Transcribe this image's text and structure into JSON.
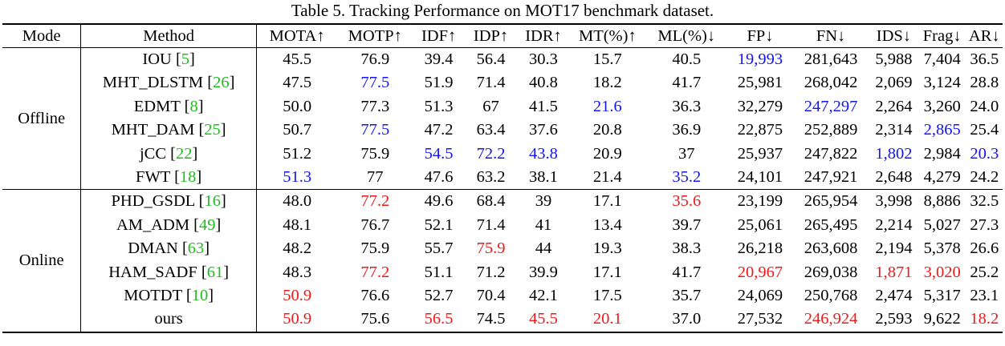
{
  "caption": "Table 5. Tracking Performance on MOT17 benchmark dataset.",
  "columns": [
    "Mode",
    "Method",
    "MOTA↑",
    "MOTP↑",
    "IDF↑",
    "IDP↑",
    "IDR↑",
    "MT(%)↑",
    "ML(%)↓",
    "FP↓",
    "FN↓",
    "IDS↓",
    "Frag↓",
    "AR↓"
  ],
  "highlight_colors": {
    "blue": "#1515f0",
    "red": "#ee1a1a",
    "reference": "#22bb22"
  },
  "groups": [
    {
      "mode": "Offline",
      "rows": [
        {
          "method": "IOU [",
          "ref": "5",
          "end": "]",
          "values": [
            "45.5",
            "76.9",
            "39.4",
            "56.4",
            "30.3",
            "15.7",
            "40.5",
            "19,993",
            "281,643",
            "5,988",
            "7,404",
            "36.5"
          ],
          "hl": [
            "",
            "",
            "",
            "",
            "",
            "",
            "",
            "blue",
            "",
            "",
            "",
            ""
          ]
        },
        {
          "method": "MHT_DLSTM [",
          "ref": "26",
          "end": "]",
          "values": [
            "47.5",
            "77.5",
            "51.9",
            "71.4",
            "40.8",
            "18.2",
            "41.7",
            "25,981",
            "268,042",
            "2,069",
            "3,124",
            "28.8"
          ],
          "hl": [
            "",
            "blue",
            "",
            "",
            "",
            "",
            "",
            "",
            "",
            "",
            "",
            ""
          ]
        },
        {
          "method": "EDMT [",
          "ref": "8",
          "end": "]",
          "values": [
            "50.0",
            "77.3",
            "51.3",
            "67",
            "41.5",
            "21.6",
            "36.3",
            "32,279",
            "247,297",
            "2,264",
            "3,260",
            "24.0"
          ],
          "hl": [
            "",
            "",
            "",
            "",
            "",
            "blue",
            "",
            "",
            "blue",
            "",
            "",
            ""
          ]
        },
        {
          "method": "MHT_DAM [",
          "ref": "25",
          "end": "]",
          "values": [
            "50.7",
            "77.5",
            "47.2",
            "63.4",
            "37.6",
            "20.8",
            "36.9",
            "22,875",
            "252,889",
            "2,314",
            "2,865",
            "25.4"
          ],
          "hl": [
            "",
            "blue",
            "",
            "",
            "",
            "",
            "",
            "",
            "",
            "",
            "blue",
            ""
          ]
        },
        {
          "method": "jCC [",
          "ref": "22",
          "end": "]",
          "values": [
            "51.2",
            "75.9",
            "54.5",
            "72.2",
            "43.8",
            "20.9",
            "37",
            "25,937",
            "247,822",
            "1,802",
            "2,984",
            "20.3"
          ],
          "hl": [
            "",
            "",
            "blue",
            "blue",
            "blue",
            "",
            "",
            "",
            "",
            "blue",
            "",
            "blue"
          ]
        },
        {
          "method": "FWT [",
          "ref": "18",
          "end": "]",
          "values": [
            "51.3",
            "77",
            "47.6",
            "63.2",
            "38.1",
            "21.4",
            "35.2",
            "24,101",
            "247,921",
            "2,648",
            "4,279",
            "24.2"
          ],
          "hl": [
            "blue",
            "",
            "",
            "",
            "",
            "",
            "blue",
            "",
            "",
            "",
            "",
            ""
          ]
        }
      ]
    },
    {
      "mode": "Online",
      "rows": [
        {
          "method": "PHD_GSDL [",
          "ref": "16",
          "end": "]",
          "values": [
            "48.0",
            "77.2",
            "49.6",
            "68.4",
            "39",
            "17.1",
            "35.6",
            "23,199",
            "265,954",
            "3,998",
            "8,886",
            "32.5"
          ],
          "hl": [
            "",
            "red",
            "",
            "",
            "",
            "",
            "red",
            "",
            "",
            "",
            "",
            ""
          ]
        },
        {
          "method": "AM_ADM [",
          "ref": "49",
          "end": "]",
          "values": [
            "48.1",
            "76.7",
            "52.1",
            "71.4",
            "41",
            "13.4",
            "39.7",
            "25,061",
            "265,495",
            "2,214",
            "5,027",
            "27.3"
          ],
          "hl": [
            "",
            "",
            "",
            "",
            "",
            "",
            "",
            "",
            "",
            "",
            "",
            ""
          ]
        },
        {
          "method": "DMAN [",
          "ref": "63",
          "end": "]",
          "values": [
            "48.2",
            "75.9",
            "55.7",
            "75.9",
            "44",
            "19.3",
            "38.3",
            "26,218",
            "263,608",
            "2,194",
            "5,378",
            "26.6"
          ],
          "hl": [
            "",
            "",
            "",
            "red",
            "",
            "",
            "",
            "",
            "",
            "",
            "",
            ""
          ]
        },
        {
          "method": "HAM_SADF [",
          "ref": "61",
          "end": "]",
          "values": [
            "48.3",
            "77.2",
            "51.1",
            "71.2",
            "39.9",
            "17.1",
            "41.7",
            "20,967",
            "269,038",
            "1,871",
            "3,020",
            "25.2"
          ],
          "hl": [
            "",
            "red",
            "",
            "",
            "",
            "",
            "",
            "red",
            "",
            "red",
            "red",
            ""
          ]
        },
        {
          "method": "MOTDT [",
          "ref": "10",
          "end": "]",
          "values": [
            "50.9",
            "76.6",
            "52.7",
            "70.4",
            "42.1",
            "17.5",
            "35.7",
            "24,069",
            "250,768",
            "2,474",
            "5,317",
            "23.1"
          ],
          "hl": [
            "red",
            "",
            "",
            "",
            "",
            "",
            "",
            "",
            "",
            "",
            "",
            ""
          ]
        },
        {
          "method": "ours",
          "ref": "",
          "end": "",
          "values": [
            "50.9",
            "75.6",
            "56.5",
            "74.5",
            "45.5",
            "20.1",
            "37.0",
            "27,532",
            "246,924",
            "2,593",
            "9,622",
            "18.2"
          ],
          "hl": [
            "red",
            "",
            "red",
            "",
            "red",
            "red",
            "",
            "",
            "red",
            "",
            "",
            "red"
          ]
        }
      ]
    }
  ]
}
